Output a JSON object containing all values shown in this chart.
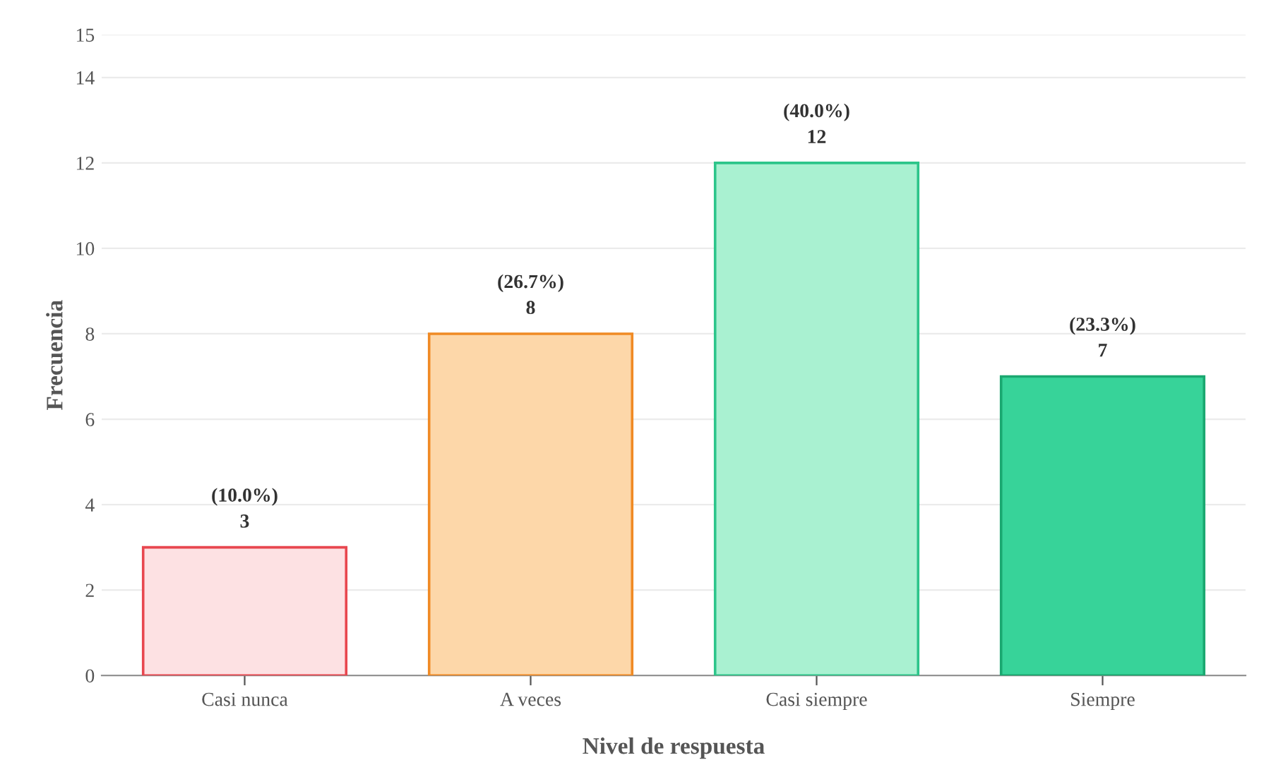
{
  "chart_data": {
    "type": "bar",
    "xlabel": "Nivel de respuesta",
    "ylabel": "Frecuencia",
    "categories": [
      "Casi nunca",
      "A veces",
      "Casi siempre",
      "Siempre"
    ],
    "values": [
      3,
      8,
      12,
      7
    ],
    "colors": [
      "#fde1e3",
      "#fdd7a9",
      "#a9f1d1",
      "#37d399"
    ],
    "value_labels": [
      "(10.0%)\n3",
      "(26.7%)\n8",
      "(40.0%)\n12",
      "(23.3%)\n7"
    ],
    "ylim": [
      0,
      15
    ],
    "yticks": [
      0,
      2,
      4,
      6,
      8,
      10,
      12,
      14,
      15
    ],
    "grid": "y",
    "legend": false
  }
}
